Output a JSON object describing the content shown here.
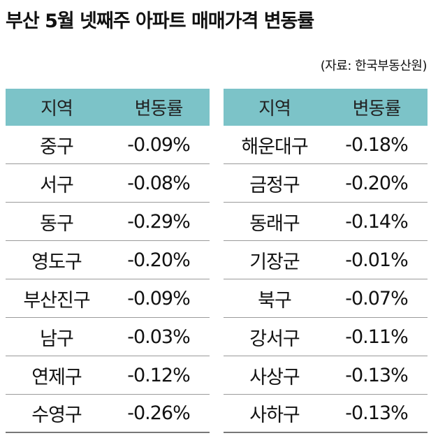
{
  "title": "부산 5월 넷째주 아파트 매매가격 변동률",
  "source": "(자료: 한국부동산원)",
  "tables": [
    {
      "header": [
        "지역",
        "변동률"
      ],
      "rows": [
        [
          "중구",
          "-0.09%"
        ],
        [
          "서구",
          "-0.08%"
        ],
        [
          "동구",
          "-0.29%"
        ],
        [
          "영도구",
          "-0.20%"
        ],
        [
          "부산진구",
          "-0.09%"
        ],
        [
          "남구",
          "-0.03%"
        ],
        [
          "연제구",
          "-0.12%"
        ],
        [
          "수영구",
          "-0.26%"
        ]
      ]
    },
    {
      "header": [
        "지역",
        "변동률"
      ],
      "rows": [
        [
          "해운대구",
          "-0.18%"
        ],
        [
          "금정구",
          "-0.20%"
        ],
        [
          "동래구",
          "-0.14%"
        ],
        [
          "기장군",
          "-0.01%"
        ],
        [
          "북구",
          "-0.07%"
        ],
        [
          "강서구",
          "-0.11%"
        ],
        [
          "사상구",
          "-0.13%"
        ],
        [
          "사하구",
          "-0.13%"
        ]
      ]
    }
  ]
}
